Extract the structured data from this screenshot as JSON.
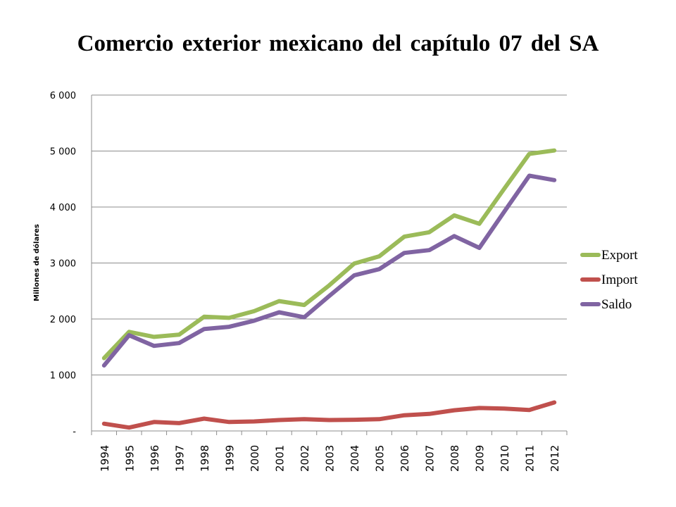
{
  "chart_data": {
    "type": "line",
    "title": "Comercio exterior mexicano del capítulo 07 del SA",
    "ylabel": "Millones de dólares",
    "xlabel": "",
    "ylim": [
      0,
      6000
    ],
    "y_ticks": [
      {
        "value": 0,
        "label": "-"
      },
      {
        "value": 1000,
        "label": "1 000"
      },
      {
        "value": 2000,
        "label": "2 000"
      },
      {
        "value": 3000,
        "label": "3 000"
      },
      {
        "value": 4000,
        "label": "4 000"
      },
      {
        "value": 5000,
        "label": "5 000"
      },
      {
        "value": 6000,
        "label": "6 000"
      }
    ],
    "grid": "horizontal",
    "legend_position": "right",
    "categories": [
      "1994",
      "1995",
      "1996",
      "1997",
      "1998",
      "1999",
      "2000",
      "2001",
      "2002",
      "2003",
      "2004",
      "2005",
      "2006",
      "2007",
      "2008",
      "2009",
      "2010",
      "2011",
      "2012"
    ],
    "series": [
      {
        "name": "Export",
        "color": "#9bbb59",
        "values": [
          1300,
          1770,
          1680,
          1720,
          2040,
          2020,
          2140,
          2320,
          2250,
          2600,
          2990,
          3120,
          3470,
          3550,
          3850,
          3700,
          4330,
          4950,
          5010
        ]
      },
      {
        "name": "Import",
        "color": "#c0504d",
        "values": [
          130,
          60,
          160,
          140,
          220,
          160,
          170,
          195,
          210,
          195,
          200,
          210,
          280,
          305,
          370,
          410,
          400,
          375,
          510
        ]
      },
      {
        "name": "Saldo",
        "color": "#8064a2",
        "values": [
          1170,
          1710,
          1520,
          1570,
          1820,
          1860,
          1970,
          2120,
          2030,
          2410,
          2780,
          2890,
          3180,
          3230,
          3480,
          3270,
          3920,
          4560,
          4480
        ]
      }
    ]
  }
}
